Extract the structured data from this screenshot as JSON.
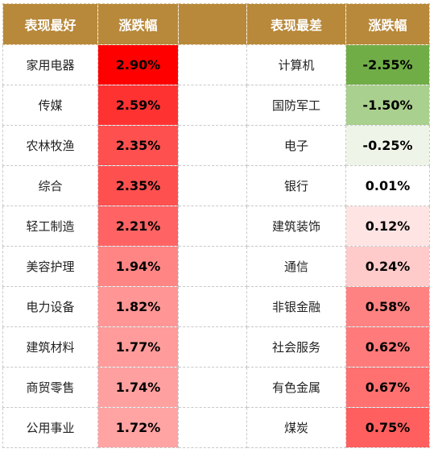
{
  "header": {
    "best_label": "表现最好",
    "best_change_label": "涨跌幅",
    "worst_label": "表现最差",
    "worst_change_label": "涨跌幅"
  },
  "best": [
    {
      "name": "家用电器",
      "change": "2.90%",
      "color": "#ff0000"
    },
    {
      "name": "传媒",
      "change": "2.59%",
      "color": "#ff3232"
    },
    {
      "name": "农林牧渔",
      "change": "2.35%",
      "color": "#ff5050"
    },
    {
      "name": "综合",
      "change": "2.35%",
      "color": "#ff5050"
    },
    {
      "name": "轻工制造",
      "change": "2.21%",
      "color": "#ff6363"
    },
    {
      "name": "美容护理",
      "change": "1.94%",
      "color": "#ff8585"
    },
    {
      "name": "电力设备",
      "change": "1.82%",
      "color": "#ff9595"
    },
    {
      "name": "建筑材料",
      "change": "1.77%",
      "color": "#ff9b9b"
    },
    {
      "name": "商贸零售",
      "change": "1.74%",
      "color": "#ffa0a0"
    },
    {
      "name": "公用事业",
      "change": "1.72%",
      "color": "#ffa3a3"
    }
  ],
  "worst": [
    {
      "name": "计算机",
      "change": "-2.55%",
      "color": "#70ad47"
    },
    {
      "name": "国防军工",
      "change": "-1.50%",
      "color": "#a9d08e"
    },
    {
      "name": "电子",
      "change": "-0.25%",
      "color": "#eef5e8"
    },
    {
      "name": "银行",
      "change": "0.01%",
      "color": "#ffffff"
    },
    {
      "name": "建筑装饰",
      "change": "0.12%",
      "color": "#ffe4e4"
    },
    {
      "name": "通信",
      "change": "0.24%",
      "color": "#ffcaca"
    },
    {
      "name": "非银金融",
      "change": "0.58%",
      "color": "#ff8282"
    },
    {
      "name": "社会服务",
      "change": "0.62%",
      "color": "#ff7a7a"
    },
    {
      "name": "有色金属",
      "change": "0.67%",
      "color": "#ff7070"
    },
    {
      "name": "煤炭",
      "change": "0.75%",
      "color": "#ff5f5f"
    }
  ]
}
